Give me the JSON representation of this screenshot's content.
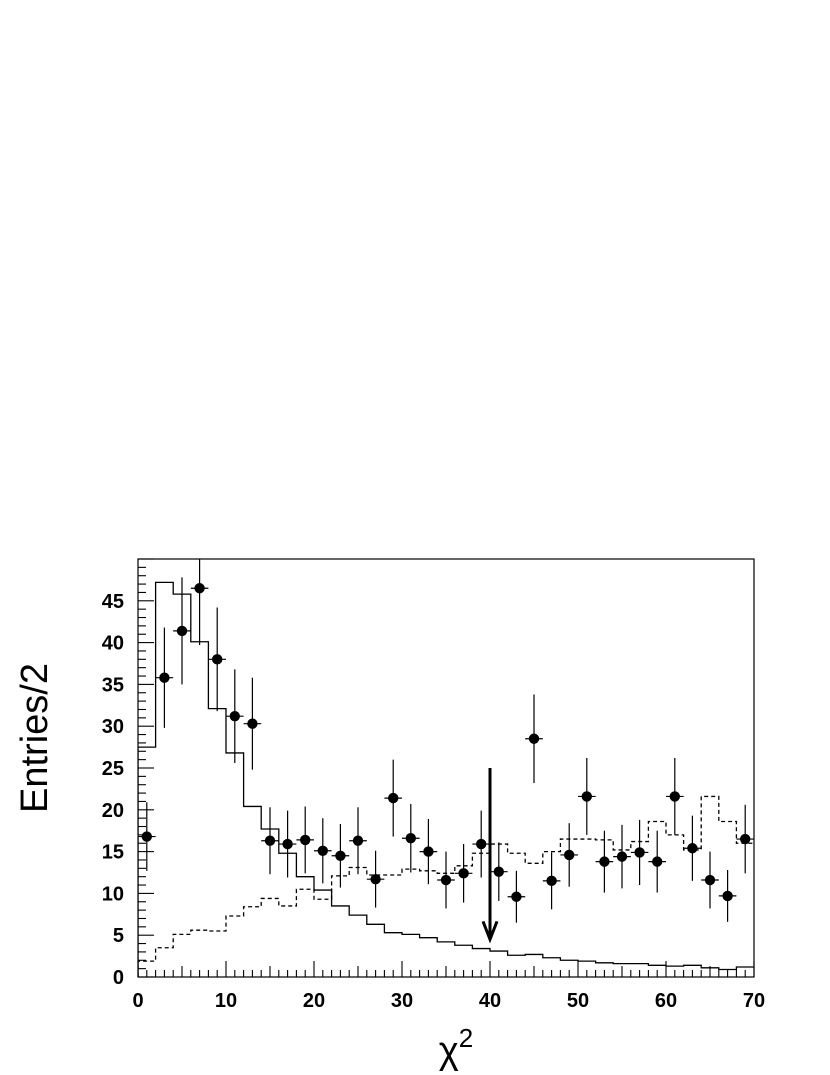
{
  "chart_data": {
    "type": "histogram",
    "xlabel": "χ",
    "xlabel_sup": "2",
    "ylabel": "Entries/2",
    "xlim": [
      0,
      70
    ],
    "ylim": [
      0,
      50
    ],
    "x_ticks": [
      "0",
      "10",
      "20",
      "30",
      "40",
      "50",
      "60",
      "70"
    ],
    "y_ticks": [
      "0",
      "5",
      "10",
      "15",
      "20",
      "25",
      "30",
      "35",
      "40",
      "45"
    ],
    "bin_width": 2,
    "grid": false,
    "legend": "none",
    "series": [
      {
        "style": "solid-histogram",
        "color": "#000000",
        "x": [
          0,
          2,
          4,
          6,
          8,
          10,
          12,
          14,
          16,
          18,
          20,
          22,
          24,
          26,
          28,
          30,
          32,
          34,
          36,
          38,
          40,
          42,
          44,
          46,
          48,
          50,
          52,
          54,
          56,
          58,
          60,
          62,
          64,
          66,
          68
        ],
        "values": [
          27.5,
          47.2,
          45.8,
          40.1,
          32.1,
          26.8,
          20.4,
          17.7,
          14.8,
          12.0,
          10.4,
          8.5,
          7.4,
          6.3,
          5.3,
          5.1,
          4.7,
          4.2,
          3.8,
          3.4,
          3.1,
          2.6,
          2.7,
          2.3,
          2.0,
          1.9,
          1.7,
          1.6,
          1.6,
          1.4,
          1.3,
          1.4,
          1.1,
          0.9,
          1.2
        ]
      },
      {
        "style": "dashed-histogram",
        "color": "#000000",
        "x": [
          0,
          2,
          4,
          6,
          8,
          10,
          12,
          14,
          16,
          18,
          20,
          22,
          24,
          26,
          28,
          30,
          32,
          34,
          36,
          38,
          40,
          42,
          44,
          46,
          48,
          50,
          52,
          54,
          56,
          58,
          60,
          62,
          64,
          66,
          68
        ],
        "values": [
          1.9,
          3.5,
          5.1,
          5.6,
          5.5,
          7.3,
          8.4,
          9.4,
          8.5,
          10.5,
          9.3,
          12.1,
          13.1,
          12.2,
          12.2,
          12.9,
          12.7,
          12.4,
          13.3,
          14.8,
          15.9,
          14.8,
          13.6,
          15.0,
          16.5,
          16.5,
          16.4,
          15.2,
          16.2,
          18.6,
          17.0,
          15.2,
          21.6,
          18.6,
          16.0
        ]
      }
    ],
    "points": {
      "style": "filled-circle-with-error-bars",
      "x": [
        1,
        3,
        5,
        7,
        9,
        11,
        13,
        15,
        17,
        19,
        21,
        23,
        25,
        27,
        29,
        31,
        33,
        35,
        37,
        39,
        41,
        43,
        45,
        47,
        49,
        51,
        53,
        55,
        57,
        59,
        61,
        63,
        65,
        67,
        69
      ],
      "y": [
        16.8,
        35.8,
        41.4,
        46.5,
        38.0,
        31.2,
        30.3,
        16.3,
        15.9,
        16.4,
        15.1,
        14.5,
        16.3,
        11.7,
        21.4,
        16.6,
        15.0,
        11.6,
        12.4,
        15.9,
        12.6,
        9.6,
        28.5,
        11.5,
        14.6,
        21.6,
        13.8,
        14.4,
        14.9,
        13.8,
        21.6,
        15.4,
        11.6,
        9.7,
        16.5
      ],
      "err": [
        4.1,
        6.0,
        6.4,
        6.8,
        6.2,
        5.6,
        5.5,
        4.0,
        4.0,
        4.0,
        3.9,
        3.8,
        4.0,
        3.4,
        4.6,
        4.1,
        3.9,
        3.4,
        3.5,
        4.0,
        3.5,
        3.1,
        5.3,
        3.4,
        3.8,
        4.6,
        3.7,
        3.8,
        3.9,
        3.7,
        4.6,
        3.9,
        3.4,
        3.1,
        4.1
      ]
    },
    "annotation": {
      "type": "arrow-down",
      "x": 40,
      "y_from": 25,
      "y_to": 4.5
    }
  }
}
